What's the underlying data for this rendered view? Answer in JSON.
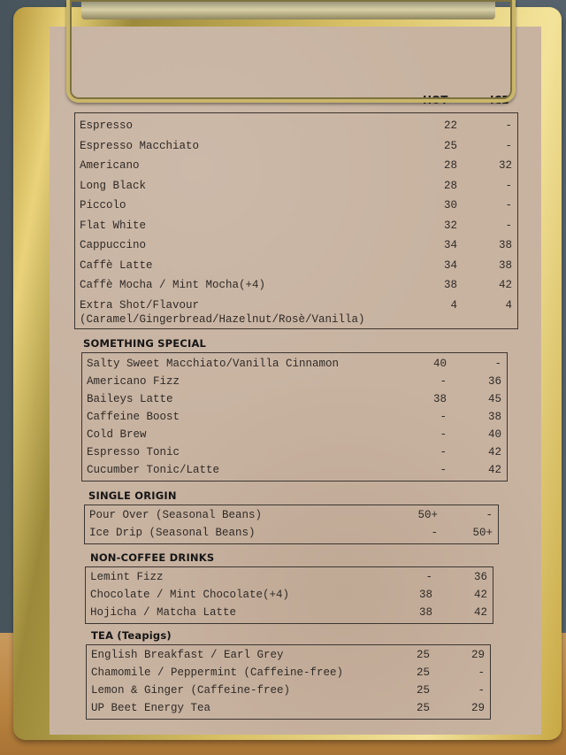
{
  "columns": {
    "hot": "HOT",
    "ice": "ICE"
  },
  "sections": [
    {
      "title": "",
      "items": [
        {
          "name": "Espresso",
          "hot": "22",
          "ice": "-"
        },
        {
          "name": "Espresso Macchiato",
          "hot": "25",
          "ice": "-"
        },
        {
          "name": "Americano",
          "hot": "28",
          "ice": "32"
        },
        {
          "name": "Long Black",
          "hot": "28",
          "ice": "-"
        },
        {
          "name": "Piccolo",
          "hot": "30",
          "ice": "-"
        },
        {
          "name": "Flat White",
          "hot": "32",
          "ice": "-"
        },
        {
          "name": "Cappuccino",
          "hot": "34",
          "ice": "38"
        },
        {
          "name": "Caffè Latte",
          "hot": "34",
          "ice": "38"
        },
        {
          "name": "Caffè Mocha / Mint Mocha(+4)",
          "hot": "38",
          "ice": "42"
        },
        {
          "name": "Extra Shot/Flavour",
          "sub": "(Caramel/Gingerbread/Hazelnut/Rosè/Vanilla)",
          "hot": "4",
          "ice": "4"
        }
      ]
    },
    {
      "title": "SOMETHING SPECIAL",
      "items": [
        {
          "name": "Salty Sweet Macchiato/Vanilla Cinnamon",
          "hot": "40",
          "ice": "-"
        },
        {
          "name": "Americano Fizz",
          "hot": "-",
          "ice": "36"
        },
        {
          "name": "Baileys Latte",
          "hot": "38",
          "ice": "45"
        },
        {
          "name": "Caffeine Boost",
          "hot": "-",
          "ice": "38"
        },
        {
          "name": "Cold Brew",
          "hot": "-",
          "ice": "40"
        },
        {
          "name": "Espresso Tonic",
          "hot": "-",
          "ice": "42"
        },
        {
          "name": "Cucumber Tonic/Latte",
          "hot": "-",
          "ice": "42"
        }
      ]
    },
    {
      "title": "SINGLE ORIGIN",
      "items": [
        {
          "name": "Pour Over (Seasonal Beans)",
          "hot": "50+",
          "ice": "-"
        },
        {
          "name": "Ice Drip (Seasonal Beans)",
          "hot": "-",
          "ice": "50+"
        }
      ]
    },
    {
      "title": "NON-COFFEE DRINKS",
      "items": [
        {
          "name": "Lemint Fizz",
          "hot": "-",
          "ice": "36"
        },
        {
          "name": "Chocolate / Mint Chocolate(+4)",
          "hot": "38",
          "ice": "42"
        },
        {
          "name": "Hojicha / Matcha Latte",
          "hot": "38",
          "ice": "42"
        }
      ]
    },
    {
      "title": "TEA (Teapigs)",
      "items": [
        {
          "name": "English Breakfast / Earl Grey",
          "hot": "25",
          "ice": "29"
        },
        {
          "name": "Chamomile / Peppermint (Caffeine-free)",
          "hot": "25",
          "ice": "-"
        },
        {
          "name": "Lemon & Ginger (Caffeine-free)",
          "hot": "25",
          "ice": "-"
        },
        {
          "name": "UP Beet Energy Tea",
          "hot": "25",
          "ice": "29"
        }
      ]
    }
  ]
}
